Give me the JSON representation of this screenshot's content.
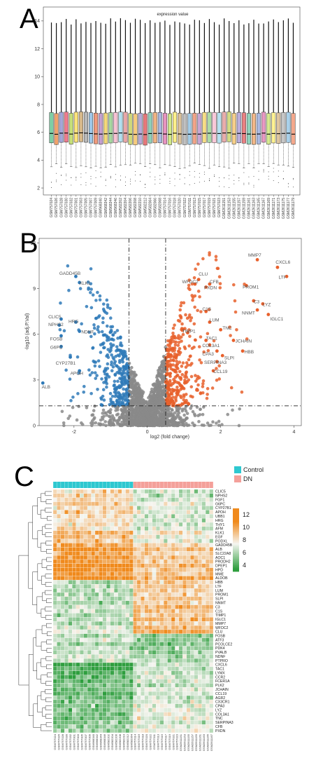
{
  "panels": {
    "a": "A",
    "b": "B",
    "c": "C"
  },
  "colors": {
    "up": "#e8602c",
    "down": "#2f7ab8",
    "ns": "#8a8a8a",
    "control": "#2ec8d0",
    "dn": "#f4a09a",
    "heat_high": "#f08a1c",
    "heat_mid": "#f5f5f0",
    "heat_low": "#2e9e3e"
  },
  "chart_data": [
    {
      "type": "box",
      "title": "expression value",
      "ylim": [
        1.5,
        15
      ],
      "yticks": [
        2,
        4,
        6,
        8,
        10,
        12,
        14
      ],
      "samples": [
        "GSM757024",
        "GSM757026",
        "GSM757028",
        "GSM757030",
        "GSM757032",
        "GSM757001",
        "GSM757003",
        "GSM757005",
        "GSM757007",
        "GSM757009",
        "GSM968340",
        "GSM968342",
        "GSM968344",
        "GSM968346",
        "GSM582202",
        "GSM582204",
        "GSM582206",
        "GSM582208",
        "GSM582210",
        "GSM582212",
        "GSM582064",
        "GSM582066",
        "GSM582068",
        "GSM757014",
        "GSM757016",
        "GSM757018",
        "GSM757020",
        "GSM757022",
        "GSM757011",
        "GSM757013",
        "GSM757015",
        "GSM757017",
        "GSM757019",
        "GSM757021",
        "GSM757023",
        "GSM2611151",
        "GSM2611153",
        "GSM2611155",
        "GSM2611157",
        "GSM2611159",
        "GSM2611161",
        "GSM2611163",
        "GSM2611165",
        "GSM2611167",
        "GSM2611169",
        "GSM2611171",
        "GSM2611173",
        "GSM2611175",
        "GSM2611177",
        "GSM2611179"
      ],
      "q1": 5.2,
      "median": 5.9,
      "q3": 7.4,
      "whisker_low": 3.6,
      "whisker_high": 14.2,
      "box_colors": [
        "#7ecfa5",
        "#f0a36c",
        "#a3a6d8",
        "#ef7c8e",
        "#c6e07a",
        "#ffe47a",
        "#d8b98a",
        "#b8b8b8",
        "#9ec7e8",
        "#f19a7c",
        "#c49fd0",
        "#f4d97a",
        "#a8d8a0",
        "#f8c2d4",
        "#b3e0f0",
        "#e9a7a7",
        "#cfd87a",
        "#f6cb7e",
        "#b5a9d8",
        "#e8787a",
        "#8fcfb8",
        "#f2b482",
        "#a9b7e0",
        "#e793c0",
        "#d2e88a",
        "#fff08a",
        "#dcc29a",
        "#c0c0c0",
        "#a4cde8",
        "#f3a488",
        "#c8a6d4",
        "#f7dd85",
        "#aedca6",
        "#f9c8d8",
        "#b8e2f2",
        "#eaacac",
        "#d2dc84",
        "#f7cf88",
        "#bbaedc",
        "#ea8082",
        "#92d2bb",
        "#f3b888",
        "#acbae2",
        "#e999c4",
        "#d6ea90",
        "#fff292",
        "#dfc6a0",
        "#c6c6c6",
        "#a8d0ea",
        "#f4a88c"
      ]
    },
    {
      "type": "scatter",
      "title": "",
      "xlabel": "log2 (fold change)",
      "ylabel": "-log10 (adj.P.Val)",
      "xlim": [
        -2.95,
        4.2
      ],
      "ylim": [
        0,
        12.3
      ],
      "xticks": [
        -2,
        0,
        2,
        4
      ],
      "yticks": [
        0,
        3,
        6,
        9,
        12
      ],
      "fc_cutoff": 0.5,
      "p_cutoff": 1.3,
      "labels": [
        {
          "gene": "MMP7",
          "x": 3.0,
          "y": 10.9,
          "lx": 2.75,
          "ly": 11.1
        },
        {
          "gene": "CXCL6",
          "x": 3.55,
          "y": 10.4,
          "lx": 3.5,
          "ly": 10.65
        },
        {
          "gene": "LTF",
          "x": 3.8,
          "y": 9.8,
          "lx": 3.58,
          "ly": 9.65
        },
        {
          "gene": "CLU",
          "x": 1.4,
          "y": 9.6,
          "lx": 1.4,
          "ly": 9.85
        },
        {
          "gene": "WFDC2",
          "x": 1.3,
          "y": 9.3,
          "lx": 0.95,
          "ly": 9.35
        },
        {
          "gene": "CFB",
          "x": 1.7,
          "y": 9.3,
          "lx": 1.7,
          "ly": 9.35
        },
        {
          "gene": "PXDN",
          "x": 1.6,
          "y": 9.1,
          "lx": 1.55,
          "ly": 8.95
        },
        {
          "gene": "PROM1",
          "x": 2.7,
          "y": 9.2,
          "lx": 2.6,
          "ly": 9.0
        },
        {
          "gene": "C3",
          "x": 2.9,
          "y": 8.2,
          "lx": 2.9,
          "ly": 8.05
        },
        {
          "gene": "LYZ",
          "x": 3.15,
          "y": 8.0,
          "lx": 3.15,
          "ly": 7.85
        },
        {
          "gene": "NNMT",
          "x": 3.0,
          "y": 7.6,
          "lx": 2.58,
          "ly": 7.3
        },
        {
          "gene": "IGLC1",
          "x": 3.3,
          "y": 7.3,
          "lx": 3.35,
          "ly": 6.9
        },
        {
          "gene": "C1S",
          "x": 1.6,
          "y": 7.5,
          "lx": 1.5,
          "ly": 7.55
        },
        {
          "gene": "LUM",
          "x": 1.7,
          "y": 6.8,
          "lx": 1.7,
          "ly": 6.85
        },
        {
          "gene": "TNC",
          "x": 2.0,
          "y": 6.3,
          "lx": 2.05,
          "ly": 6.3
        },
        {
          "gene": "TIMP1",
          "x": 1.1,
          "y": 6.1,
          "lx": 0.95,
          "ly": 6.1
        },
        {
          "gene": "TAC1",
          "x": 1.6,
          "y": 5.6,
          "lx": 1.6,
          "ly": 5.65
        },
        {
          "gene": "JCHAIN",
          "x": 2.35,
          "y": 5.6,
          "lx": 2.4,
          "ly": 5.45
        },
        {
          "gene": "COL3A1",
          "x": 1.7,
          "y": 5.3,
          "lx": 1.5,
          "ly": 5.15
        },
        {
          "gene": "CPA3",
          "x": 1.9,
          "y": 4.9,
          "lx": 1.5,
          "ly": 4.6
        },
        {
          "gene": "SLPI",
          "x": 2.05,
          "y": 4.6,
          "lx": 2.1,
          "ly": 4.35
        },
        {
          "gene": "HBB",
          "x": 2.6,
          "y": 4.9,
          "lx": 2.65,
          "ly": 4.75
        },
        {
          "gene": "SERPINA3",
          "x": 1.9,
          "y": 4.2,
          "lx": 1.55,
          "ly": 4.05
        },
        {
          "gene": "CCL19",
          "x": 1.8,
          "y": 3.6,
          "lx": 1.8,
          "ly": 3.45
        },
        {
          "gene": "GADD45B",
          "x": -1.95,
          "y": 9.8,
          "lx": -2.4,
          "ly": 9.9
        },
        {
          "gene": "KLK1",
          "x": -1.85,
          "y": 9.4,
          "lx": -1.85,
          "ly": 9.25
        },
        {
          "gene": "CLIC5",
          "x": -2.35,
          "y": 7.0,
          "lx": -2.7,
          "ly": 7.05
        },
        {
          "gene": "NPHS2",
          "x": -2.4,
          "y": 6.6,
          "lx": -2.7,
          "ly": 6.55
        },
        {
          "gene": "HRG",
          "x": -1.95,
          "y": 6.8,
          "lx": -2.15,
          "ly": 6.75
        },
        {
          "gene": "NDNF",
          "x": -1.85,
          "y": 6.2,
          "lx": -1.8,
          "ly": 6.05
        },
        {
          "gene": "FOSB",
          "x": -2.35,
          "y": 5.9,
          "lx": -2.65,
          "ly": 5.6
        },
        {
          "gene": "G6PC",
          "x": -2.35,
          "y": 5.2,
          "lx": -2.65,
          "ly": 5.05
        },
        {
          "gene": "CYP27B1",
          "x": -2.1,
          "y": 4.5,
          "lx": -2.5,
          "ly": 4.0
        },
        {
          "gene": "APOH",
          "x": -1.85,
          "y": 3.6,
          "lx": -2.1,
          "ly": 3.35
        },
        {
          "gene": "ALB",
          "x": -2.85,
          "y": 2.8,
          "lx": -2.88,
          "ly": 2.45
        }
      ]
    },
    {
      "type": "heatmap",
      "groups": [
        "Control",
        "DN"
      ],
      "n_control": 21,
      "n_dn": 21,
      "scale_ticks": [
        12,
        10,
        8,
        6,
        4
      ],
      "scale_range": [
        3,
        13
      ],
      "genes": [
        "CLIC5",
        "NPHS2",
        "FGF1",
        "G6PC",
        "CYP27B1",
        "APOH",
        "UBB1",
        "HRG",
        "THY1",
        "AFM",
        "KLK1",
        "EGF",
        "PODXL",
        "GADD45B",
        "ALB",
        "SLC22A8",
        "AOC1",
        "PRODH2",
        "DPEP1",
        "HPD",
        "MME",
        "ALDOB",
        "HBB",
        "LTF",
        "LUM",
        "PROM1",
        "SLPI",
        "NNMT",
        "C3",
        "C1S",
        "TIMP1",
        "IGLC1",
        "MMP7",
        "WFDC2",
        "CLU",
        "FOSB",
        "ATF3",
        "PCOLCE2",
        "PDK4",
        "PVALB",
        "NDNF",
        "PTPRO",
        "CXCL6",
        "TAC1",
        "LYMX",
        "CCR2",
        "FCER1A",
        "PLK2",
        "JCHAIN",
        "CCL19",
        "AGR2",
        "CX3CR1",
        "CPA3",
        "LYZ",
        "COL3A1",
        "TNC",
        "SERPINA3",
        "CFB",
        "PXDN"
      ],
      "gene_means_control": [
        8.6,
        8.6,
        8.4,
        8.8,
        8.6,
        8.8,
        8.2,
        8.2,
        8.0,
        8.2,
        9.8,
        9.4,
        9.0,
        10.0,
        11.2,
        10.0,
        11.0,
        10.8,
        11.2,
        11.0,
        10.6,
        11.4,
        6.2,
        6.4,
        6.2,
        6.0,
        6.2,
        6.2,
        6.6,
        6.4,
        6.0,
        6.6,
        5.8,
        6.8,
        7.0,
        6.2,
        6.6,
        5.8,
        6.0,
        6.4,
        6.6,
        6.6,
        3.6,
        4.0,
        4.4,
        4.6,
        4.8,
        5.0,
        4.8,
        4.6,
        5.0,
        5.2,
        5.2,
        5.4,
        5.0,
        5.2,
        5.2,
        5.6,
        5.6
      ],
      "gene_means_dn": [
        6.6,
        6.6,
        6.8,
        7.0,
        6.8,
        7.0,
        6.8,
        6.6,
        6.6,
        6.8,
        8.0,
        7.4,
        7.0,
        8.2,
        9.4,
        8.6,
        9.2,
        9.0,
        9.6,
        9.2,
        9.0,
        9.8,
        9.0,
        9.2,
        9.0,
        8.8,
        9.0,
        8.8,
        9.6,
        9.2,
        9.0,
        9.8,
        8.8,
        9.6,
        10.0,
        5.6,
        5.4,
        5.2,
        5.4,
        5.6,
        5.8,
        5.8,
        6.4,
        6.6,
        6.6,
        6.8,
        6.8,
        6.6,
        7.2,
        6.8,
        6.8,
        7.0,
        7.2,
        7.4,
        7.2,
        7.2,
        7.0,
        7.2,
        7.4
      ],
      "samples": [
        "GSM757024",
        "GSM757026",
        "GSM757028",
        "GSM757030",
        "GSM757032",
        "GSM757001",
        "GSM757003",
        "GSM757005",
        "GSM757007",
        "GSM757009",
        "GSM968340",
        "GSM968342",
        "GSM968344",
        "GSM968346",
        "GSM582202",
        "GSM582204",
        "GSM582206",
        "GSM582208",
        "GSM582210",
        "GSM582212",
        "GSM582064",
        "GSM757014",
        "GSM757016",
        "GSM757018",
        "GSM757020",
        "GSM757022",
        "GSM757011",
        "GSM757013",
        "GSM757015",
        "GSM757017",
        "GSM757019",
        "GSM757021",
        "GSM757023",
        "GSM2611151",
        "GSM2611153",
        "GSM2611155",
        "GSM2611157",
        "GSM2611159",
        "GSM2611161",
        "GSM2611163",
        "GSM2611165",
        "GSM2611167"
      ]
    }
  ]
}
